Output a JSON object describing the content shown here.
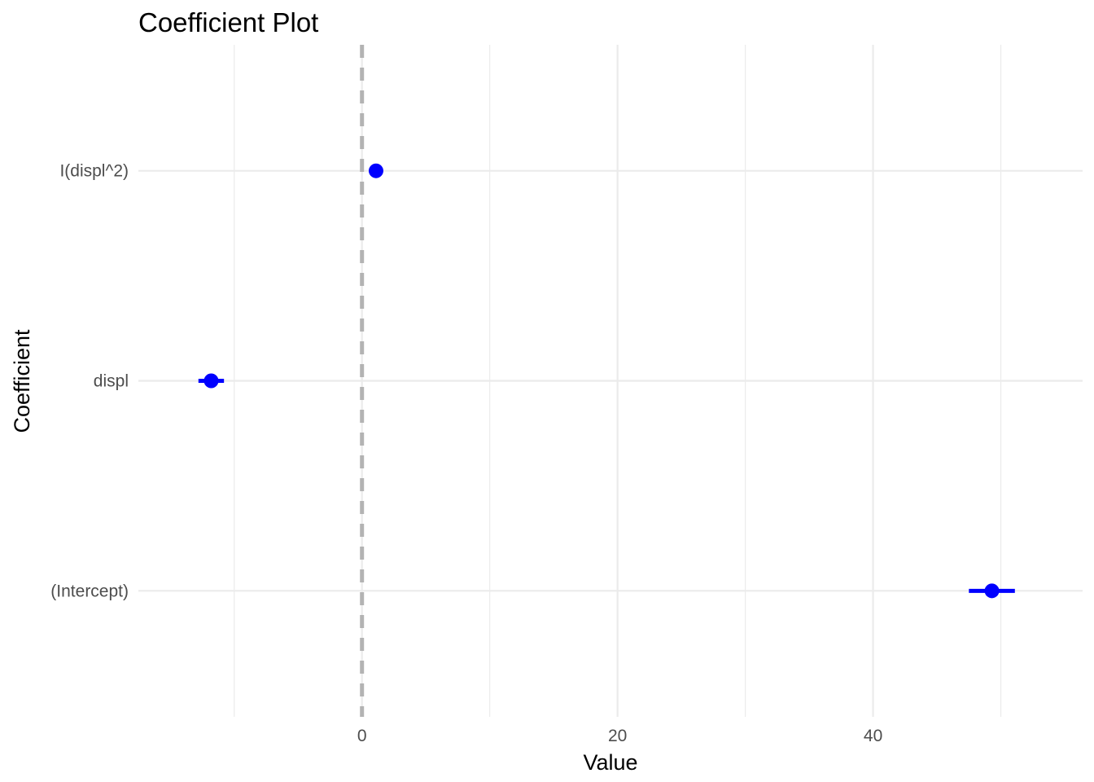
{
  "chart_data": {
    "type": "scatter",
    "title": "Coefficient Plot",
    "xlabel": "Value",
    "ylabel": "Coefficient",
    "xlim": [
      -17.5,
      56.4
    ],
    "x_ticks": [
      0,
      20,
      40
    ],
    "x_minor_ticks": [
      -10,
      10,
      30,
      50
    ],
    "categories": [
      "(Intercept)",
      "displ",
      "I(displ^2)"
    ],
    "series": [
      {
        "points": [
          {
            "category": "(Intercept)",
            "estimate": 49.3,
            "low": 47.5,
            "high": 51.1
          },
          {
            "category": "displ",
            "estimate": -11.8,
            "low": -12.8,
            "high": -10.8
          },
          {
            "category": "I(displ^2)",
            "estimate": 1.1,
            "low": 1.0,
            "high": 1.2
          }
        ]
      }
    ],
    "reference_line": {
      "x": 0,
      "style": "dashed",
      "color": "#b3b3b3"
    },
    "point_color": "#0000ff",
    "grid": true,
    "legend": "none"
  }
}
